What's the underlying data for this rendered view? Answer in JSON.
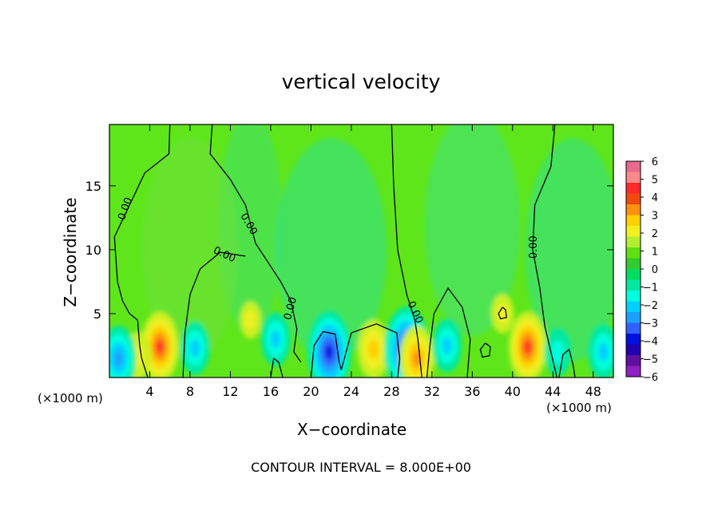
{
  "chart_data": {
    "type": "heatmap",
    "title": "vertical velocity",
    "xlabel": "X−coordinate",
    "ylabel": "Z−coordinate",
    "x_unit_left": "(×1000 m)",
    "x_unit_right": "(×1000 m)",
    "footer": "CONTOUR INTERVAL = 8.000E+00",
    "x_ticks": [
      4,
      8,
      12,
      16,
      20,
      24,
      28,
      32,
      36,
      40,
      44,
      48
    ],
    "y_ticks": [
      5,
      10,
      15
    ],
    "xlim": [
      0,
      50
    ],
    "ylim": [
      0,
      19.8
    ],
    "colorbar": {
      "min": -6,
      "max": 6,
      "tick_labels": [
        "6",
        "5",
        "4",
        "3",
        "2",
        "1",
        "0",
        "−1",
        "−2",
        "−3",
        "−4",
        "−5",
        "−6"
      ],
      "colors": [
        "#e86a8e",
        "#fa8a8a",
        "#ff2a2a",
        "#f04a10",
        "#ff9010",
        "#ffd000",
        "#f0f020",
        "#b0ee30",
        "#60e010",
        "#30cc30",
        "#00dd60",
        "#00e8a0",
        "#00ffdd",
        "#00d0ff",
        "#1ba0ff",
        "#3060ff",
        "#0010e0",
        "#2000b0",
        "#6010a0",
        "#9020c0"
      ]
    },
    "contour_labels": [
      "0.00",
      "0.00",
      "0.00",
      "0.00",
      "0.00",
      "0.00"
    ],
    "features": [
      {
        "x": 5.0,
        "z": 2.4,
        "w": 3.5,
        "sign": "positive"
      },
      {
        "x": 2.8,
        "z": 1.7,
        "w": 1.5,
        "sign": "positive"
      },
      {
        "x": 26.2,
        "z": 2.2,
        "w": 2.5,
        "sign": "positive"
      },
      {
        "x": 41.5,
        "z": 2.4,
        "w": 3.5,
        "sign": "positive"
      },
      {
        "x": 39.0,
        "z": 5.0,
        "w": 0.8,
        "sign": "positive"
      },
      {
        "x": 14.0,
        "z": 4.5,
        "w": 0.6,
        "sign": "positive"
      },
      {
        "x": 0.9,
        "z": 1.5,
        "w": -3.0,
        "sign": "negative"
      },
      {
        "x": 8.5,
        "z": 2.3,
        "w": -2.0,
        "sign": "negative"
      },
      {
        "x": 16.5,
        "z": 3.0,
        "w": -2.0,
        "sign": "negative"
      },
      {
        "x": 21.8,
        "z": 2.0,
        "w": -4.5,
        "sign": "negative"
      },
      {
        "x": 29.5,
        "z": 2.2,
        "w": -4.8,
        "sign": "negative"
      },
      {
        "x": 30.5,
        "z": 1.5,
        "w": 3.0,
        "sign": "positive"
      },
      {
        "x": 33.5,
        "z": 2.5,
        "w": -2.0,
        "sign": "negative"
      },
      {
        "x": 49.0,
        "z": 2.0,
        "w": -2.2,
        "sign": "negative"
      },
      {
        "x": 44.5,
        "z": 2.0,
        "w": -1.5,
        "sign": "negative"
      }
    ]
  }
}
